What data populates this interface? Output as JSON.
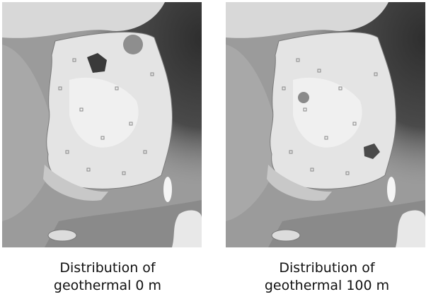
{
  "panels": [
    {
      "caption": [
        "Distribution of",
        "geothermal 0 m"
      ]
    },
    {
      "caption": [
        "Distribution of",
        "geothermal 100 m"
      ]
    }
  ]
}
